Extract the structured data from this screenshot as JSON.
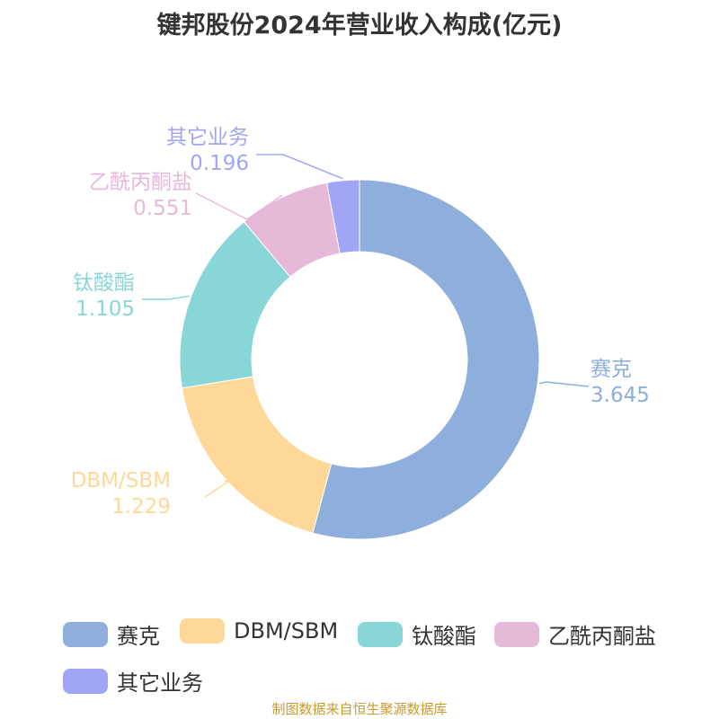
{
  "title": "键邦股份2024年营业收入构成(亿元)",
  "source": "制图数据来自恒生聚源数据库",
  "chart_data": {
    "type": "pie",
    "donut": true,
    "title": "键邦股份2024年营业收入构成(亿元)",
    "categories": [
      "赛克",
      "DBM/SBM",
      "钛酸酯",
      "乙酰丙酮盐",
      "其它业务"
    ],
    "values": [
      3.645,
      1.229,
      1.105,
      0.551,
      0.196
    ],
    "value_labels": [
      "3.645",
      "1.229",
      "1.105",
      "0.551",
      "0.196"
    ],
    "colors": [
      "#8eaedb",
      "#fdd899",
      "#88d6d8",
      "#e7b9d9",
      "#a0a6f5"
    ],
    "legend_position": "bottom"
  },
  "legend": {
    "items": [
      {
        "label": "赛克",
        "color": "#8eaedb"
      },
      {
        "label": "DBM/SBM",
        "color": "#fdd899"
      },
      {
        "label": "钛酸酯",
        "color": "#88d6d8"
      },
      {
        "label": "乙酰丙酮盐",
        "color": "#e7b9d9"
      },
      {
        "label": "其它业务",
        "color": "#a0a6f5"
      }
    ]
  }
}
